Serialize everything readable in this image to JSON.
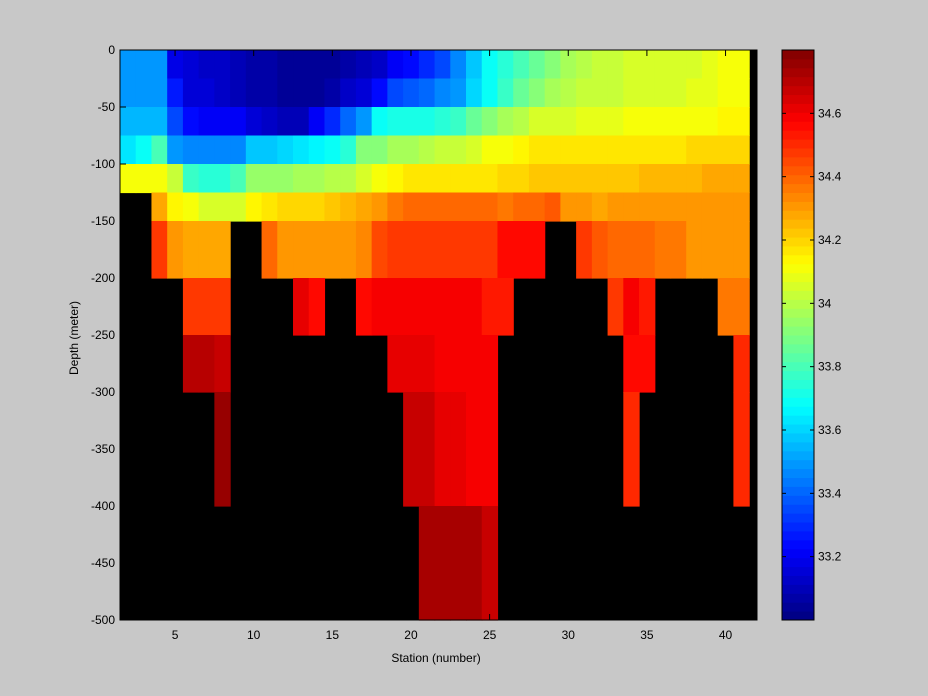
{
  "chart_data": {
    "type": "heatmap",
    "title": "",
    "xlabel": "Station (number)",
    "ylabel": "Depth (meter)",
    "xlim": [
      1.5,
      42
    ],
    "ylim": [
      -500,
      0
    ],
    "xticks": [
      5,
      10,
      15,
      20,
      25,
      30,
      35,
      40
    ],
    "xtick_labels": [
      "5",
      "10",
      "15",
      "20",
      "25",
      "30",
      "35",
      "40"
    ],
    "yticks": [
      0,
      -50,
      -100,
      -150,
      -200,
      -250,
      -300,
      -350,
      -400,
      -450,
      -500
    ],
    "ytick_labels": [
      "0",
      "-50",
      "-100",
      "-150",
      "-200",
      "-250",
      "-300",
      "-350",
      "-400",
      "-450",
      "-500"
    ],
    "colorbar": {
      "colormap": "jet",
      "clim": [
        33.0,
        34.8
      ],
      "ticks": [
        33.2,
        33.4,
        33.6,
        33.8,
        34,
        34.2,
        34.4,
        34.6
      ],
      "tick_labels": [
        "33.2",
        "33.4",
        "33.6",
        "33.8",
        "34",
        "34.2",
        "34.4",
        "34.6"
      ],
      "levels": 64
    },
    "no_data_color": "#000000",
    "background_color": "#c8c8c8",
    "stations": [
      2,
      3,
      4,
      5,
      6,
      7,
      8,
      9,
      10,
      11,
      12,
      13,
      14,
      15,
      16,
      17,
      18,
      19,
      20,
      21,
      22,
      23,
      24,
      25,
      26,
      27,
      28,
      29,
      30,
      31,
      32,
      33,
      34,
      35,
      36,
      37,
      38,
      39,
      40,
      41
    ],
    "depth_bins": [
      {
        "top": 0,
        "bottom": -25
      },
      {
        "top": -25,
        "bottom": -50
      },
      {
        "top": -50,
        "bottom": -75
      },
      {
        "top": -75,
        "bottom": -100
      },
      {
        "top": -100,
        "bottom": -125
      },
      {
        "top": -125,
        "bottom": -150
      },
      {
        "top": -150,
        "bottom": -200
      },
      {
        "top": -200,
        "bottom": -250
      },
      {
        "top": -250,
        "bottom": -300
      },
      {
        "top": -300,
        "bottom": -400
      },
      {
        "top": -400,
        "bottom": -500
      }
    ],
    "salinity": [
      [
        33.48,
        33.48,
        33.48,
        33.18,
        33.15,
        33.14,
        33.12,
        33.1,
        33.08,
        33.06,
        33.05,
        33.04,
        33.04,
        33.05,
        33.08,
        33.1,
        33.12,
        33.2,
        33.25,
        33.3,
        33.35,
        33.45,
        33.58,
        33.68,
        33.74,
        33.8,
        33.86,
        33.92,
        33.98,
        34.0,
        34.02,
        34.04,
        34.05,
        34.06,
        34.06,
        34.06,
        34.06,
        34.08,
        34.1,
        34.12
      ],
      [
        33.48,
        33.48,
        33.48,
        33.26,
        33.16,
        33.15,
        33.12,
        33.1,
        33.08,
        33.06,
        33.05,
        33.05,
        33.05,
        33.08,
        33.12,
        33.15,
        33.25,
        33.35,
        33.38,
        33.42,
        33.45,
        33.5,
        33.6,
        33.7,
        33.78,
        33.85,
        33.92,
        33.96,
        34.0,
        34.02,
        34.03,
        34.04,
        34.05,
        34.06,
        34.06,
        34.06,
        34.07,
        34.08,
        34.1,
        34.12
      ],
      [
        33.55,
        33.55,
        33.55,
        33.35,
        33.25,
        33.2,
        33.2,
        33.2,
        33.15,
        33.12,
        33.1,
        33.1,
        33.2,
        33.3,
        33.4,
        33.5,
        33.7,
        33.72,
        33.72,
        33.72,
        33.74,
        33.78,
        33.85,
        33.9,
        33.96,
        34.0,
        34.05,
        34.06,
        34.06,
        34.08,
        34.08,
        34.09,
        34.1,
        34.1,
        34.11,
        34.11,
        34.12,
        34.12,
        34.13,
        34.14
      ],
      [
        33.62,
        33.7,
        33.8,
        33.48,
        33.45,
        33.45,
        33.45,
        33.45,
        33.58,
        33.58,
        33.6,
        33.62,
        33.65,
        33.7,
        33.75,
        33.9,
        33.92,
        33.96,
        33.98,
        34.0,
        34.02,
        34.04,
        34.06,
        34.1,
        34.12,
        34.15,
        34.16,
        34.16,
        34.17,
        34.18,
        34.18,
        34.18,
        34.18,
        34.18,
        34.18,
        34.18,
        34.2,
        34.2,
        34.2,
        34.2
      ],
      [
        34.1,
        34.12,
        34.1,
        34.04,
        33.78,
        33.75,
        33.75,
        33.8,
        33.95,
        33.95,
        33.95,
        33.97,
        33.98,
        34.0,
        34.0,
        34.05,
        34.12,
        34.14,
        34.16,
        34.16,
        34.16,
        34.18,
        34.18,
        34.18,
        34.2,
        34.2,
        34.22,
        34.22,
        34.22,
        34.22,
        34.22,
        34.22,
        34.22,
        34.24,
        34.24,
        34.26,
        34.26,
        34.28,
        34.28,
        34.28
      ],
      [
        null,
        null,
        34.28,
        34.15,
        34.1,
        34.05,
        34.05,
        34.05,
        34.15,
        34.18,
        34.2,
        34.2,
        34.2,
        34.22,
        34.25,
        34.28,
        34.32,
        34.35,
        34.38,
        34.4,
        34.4,
        34.4,
        34.4,
        34.4,
        34.35,
        34.38,
        34.4,
        34.42,
        34.32,
        34.3,
        34.28,
        34.3,
        34.3,
        34.3,
        34.32,
        34.32,
        34.32,
        34.3,
        34.3,
        34.3
      ],
      [
        null,
        null,
        34.48,
        34.3,
        34.28,
        34.28,
        34.28,
        null,
        null,
        34.4,
        34.32,
        34.32,
        34.3,
        34.32,
        34.3,
        34.34,
        34.45,
        34.48,
        34.48,
        34.48,
        34.48,
        34.48,
        34.48,
        34.48,
        34.55,
        34.55,
        34.55,
        null,
        null,
        34.48,
        34.42,
        34.4,
        34.38,
        34.38,
        34.35,
        34.35,
        34.32,
        34.32,
        34.3,
        34.3
      ],
      [
        null,
        null,
        null,
        null,
        34.48,
        34.48,
        34.48,
        null,
        null,
        null,
        null,
        34.62,
        34.55,
        null,
        null,
        34.55,
        34.58,
        34.58,
        34.58,
        34.58,
        34.58,
        34.58,
        34.58,
        34.52,
        34.52,
        null,
        null,
        null,
        null,
        null,
        null,
        34.48,
        34.58,
        34.52,
        null,
        null,
        null,
        null,
        34.35,
        34.35
      ],
      [
        null,
        null,
        null,
        null,
        34.7,
        34.7,
        34.66,
        null,
        null,
        null,
        null,
        null,
        null,
        null,
        null,
        null,
        null,
        34.62,
        34.62,
        34.62,
        34.6,
        34.6,
        34.6,
        34.58,
        null,
        null,
        null,
        null,
        null,
        null,
        null,
        null,
        34.55,
        34.55,
        null,
        null,
        null,
        null,
        null,
        34.5
      ],
      [
        null,
        null,
        null,
        null,
        null,
        null,
        34.75,
        null,
        null,
        null,
        null,
        null,
        null,
        null,
        null,
        null,
        null,
        null,
        34.66,
        34.66,
        34.62,
        34.62,
        34.6,
        34.6,
        null,
        null,
        null,
        null,
        null,
        null,
        null,
        null,
        34.5,
        null,
        null,
        null,
        null,
        null,
        null,
        34.5
      ],
      [
        null,
        null,
        null,
        null,
        null,
        null,
        null,
        null,
        null,
        null,
        null,
        null,
        null,
        null,
        null,
        null,
        null,
        null,
        null,
        34.72,
        34.72,
        34.72,
        34.72,
        34.66,
        null,
        null,
        null,
        null,
        null,
        null,
        null,
        null,
        null,
        null,
        null,
        null,
        null,
        null,
        null,
        null
      ]
    ]
  }
}
